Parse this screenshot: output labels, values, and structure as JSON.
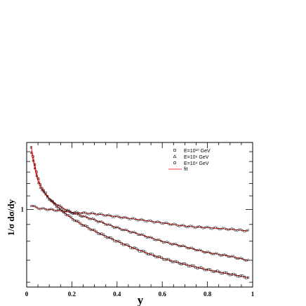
{
  "chart_data": {
    "type": "scatter",
    "title": "",
    "xlabel": "y",
    "ylabel": "1/σ dσ/dy",
    "xlim": [
      0,
      1
    ],
    "ylim": [
      0.58,
      1.6
    ],
    "yscale": "log",
    "x_ticks": [
      "0",
      "0.2",
      "0.4",
      "0.6",
      "0.8",
      "1"
    ],
    "y_ticks": [
      "1"
    ],
    "grid": false,
    "legend_position": "top-right",
    "series": [
      {
        "name": "E=10¹⁰ GeV",
        "marker": "open-square",
        "x": [
          0.02,
          0.05,
          0.1,
          0.15,
          0.2,
          0.3,
          0.4,
          0.5,
          0.6,
          0.7,
          0.8,
          0.9,
          0.98
        ],
        "y": [
          1.55,
          1.25,
          1.08,
          1.0,
          0.94,
          0.86,
          0.8,
          0.75,
          0.71,
          0.68,
          0.655,
          0.635,
          0.62
        ]
      },
      {
        "name": "E=10⁶ GeV",
        "marker": "open-triangle",
        "x": [
          0.02,
          0.05,
          0.1,
          0.15,
          0.2,
          0.3,
          0.4,
          0.5,
          0.6,
          0.7,
          0.8,
          0.9,
          0.98
        ],
        "y": [
          1.5,
          1.22,
          1.08,
          1.02,
          0.98,
          0.93,
          0.88,
          0.84,
          0.8,
          0.77,
          0.74,
          0.72,
          0.7
        ]
      },
      {
        "name": "E=10⁴ GeV",
        "marker": "open-circle",
        "x": [
          0.02,
          0.05,
          0.1,
          0.15,
          0.2,
          0.3,
          0.4,
          0.5,
          0.6,
          0.7,
          0.8,
          0.9,
          0.98
        ],
        "y": [
          1.03,
          1.01,
          1.0,
          0.99,
          0.98,
          0.97,
          0.95,
          0.93,
          0.91,
          0.89,
          0.88,
          0.87,
          0.86
        ]
      }
    ],
    "fit": {
      "name": "fit",
      "color": "#ff0000"
    },
    "colors": {
      "markers": "#000000",
      "fit": "#ff0000"
    }
  }
}
